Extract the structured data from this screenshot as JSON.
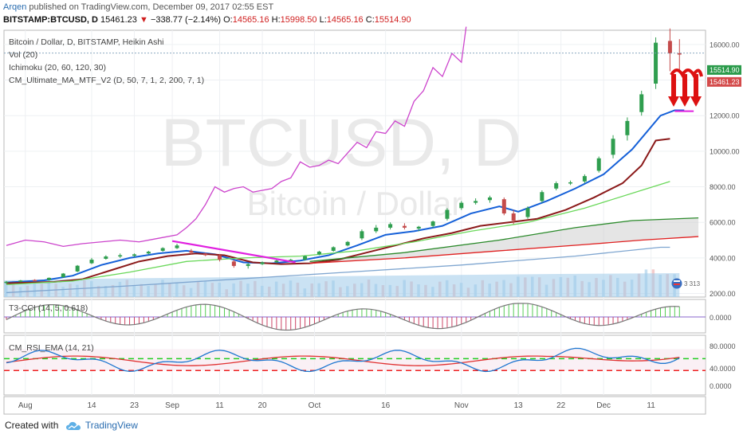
{
  "header": {
    "user": "Arqen",
    "published": "published on TradingView.com, December 09, 2017 02:55 EST",
    "symbol": "BITSTAMP:BTCUSD, D",
    "last": "15461.23",
    "change_arrow": "▼",
    "change": "−338.77 (−2.14%)",
    "o_label": "O:",
    "o": "14565.16",
    "h_label": "H:",
    "h": "15998.50",
    "l_label": "L:",
    "l": "14565.16",
    "c_label": "C:",
    "c": "15514.90"
  },
  "legend": {
    "title": "Bitcoin / Dollar, D, BITSTAMP, Heikin Ashi",
    "vol": "Vol (20)",
    "ichimoku": "Ichimoku (20, 60, 120, 30)",
    "cm_ma": "CM_Ultimate_MA_MTF_V2 (D, 50, 7, 1, 2, 200, 7, 1)"
  },
  "watermark": {
    "symbol": "BTCUSD, D",
    "name": "Bitcoin / Dollar"
  },
  "price_labels": {
    "upper": "15514.90",
    "lower": "15461.23",
    "volume": "3 313"
  },
  "indicators": {
    "cci": {
      "label": "T3-CCI (14, 5, 0.618)",
      "zero": "0.0000"
    },
    "rsi": {
      "label": "CM_RSI_EMA (14, 21)",
      "upper": "80.0000",
      "lower": "40.0000",
      "zero": "0.0000"
    }
  },
  "footer": {
    "created_with": "Created with",
    "brand": "TradingView"
  },
  "chart_data": {
    "type": "candlestick",
    "title": "Bitcoin / Dollar, D, BITSTAMP, Heikin Ashi",
    "price_axis_ticks": [
      2000,
      4000,
      6000,
      8000,
      10000,
      12000,
      14000,
      16000
    ],
    "price_axis_labels": [
      "2000.00",
      "4000.00",
      "6000.00",
      "8000.00",
      "10000.00",
      "12000.00",
      "14000.00",
      "16000.00"
    ],
    "ylim": [
      1800,
      16800
    ],
    "x_ticks": [
      "Aug",
      "14",
      "23",
      "Sep",
      "11",
      "20",
      "Oct",
      "16",
      "Nov",
      "13",
      "22",
      "Dec",
      "11"
    ],
    "x_tick_days": [
      0,
      14,
      23,
      31,
      41,
      50,
      61,
      76,
      92,
      104,
      113,
      122,
      132
    ],
    "date_range": [
      "2017-07-26",
      "2017-12-13"
    ],
    "candles_ohlc_by_day": [
      [
        -4,
        2620,
        2700,
        2540,
        2660
      ],
      [
        -1,
        2700,
        2760,
        2640,
        2730
      ],
      [
        2,
        2760,
        2800,
        2700,
        2740
      ],
      [
        5,
        2760,
        2900,
        2720,
        2880
      ],
      [
        8,
        2920,
        3150,
        2880,
        3120
      ],
      [
        11,
        3240,
        3600,
        3200,
        3560
      ],
      [
        14,
        3700,
        4000,
        3650,
        3900
      ],
      [
        17,
        3950,
        4150,
        3900,
        4080
      ],
      [
        20,
        4080,
        4250,
        4000,
        4150
      ],
      [
        23,
        4120,
        4250,
        4050,
        4200
      ],
      [
        26,
        4250,
        4400,
        4200,
        4350
      ],
      [
        29,
        4400,
        4600,
        4350,
        4550
      ],
      [
        32,
        4550,
        4800,
        4500,
        4700
      ],
      [
        35,
        4400,
        4500,
        4200,
        4300
      ],
      [
        38,
        4250,
        4300,
        4100,
        4150
      ],
      [
        41,
        4150,
        4200,
        3800,
        3900
      ],
      [
        44,
        3800,
        3900,
        3450,
        3550
      ],
      [
        47,
        3550,
        3700,
        3400,
        3650
      ],
      [
        50,
        3650,
        3800,
        3600,
        3750
      ],
      [
        53,
        3760,
        3900,
        3700,
        3850
      ],
      [
        56,
        3850,
        3950,
        3800,
        3900
      ],
      [
        59,
        3900,
        4150,
        3850,
        4100
      ],
      [
        62,
        4200,
        4400,
        4150,
        4350
      ],
      [
        65,
        4400,
        4650,
        4350,
        4600
      ],
      [
        68,
        4700,
        4950,
        4650,
        4900
      ],
      [
        71,
        5100,
        5600,
        5000,
        5500
      ],
      [
        74,
        5500,
        5850,
        5400,
        5700
      ],
      [
        77,
        5700,
        6000,
        5600,
        5900
      ],
      [
        80,
        5800,
        5950,
        5600,
        5700
      ],
      [
        83,
        5650,
        5800,
        5500,
        5750
      ],
      [
        86,
        5800,
        6100,
        5700,
        6050
      ],
      [
        89,
        6200,
        6800,
        6100,
        6700
      ],
      [
        92,
        6800,
        7200,
        6700,
        7100
      ],
      [
        95,
        7100,
        7350,
        7000,
        7200
      ],
      [
        98,
        7250,
        7500,
        7100,
        7400
      ],
      [
        101,
        7300,
        7400,
        6400,
        6500
      ],
      [
        103,
        6500,
        6700,
        5900,
        6100
      ],
      [
        106,
        6300,
        6900,
        6200,
        6800
      ],
      [
        109,
        7200,
        7800,
        7100,
        7700
      ],
      [
        112,
        7900,
        8300,
        7800,
        8200
      ],
      [
        115,
        8200,
        8350,
        8100,
        8250
      ],
      [
        118,
        8300,
        8700,
        8200,
        8600
      ],
      [
        121,
        8900,
        9700,
        8800,
        9600
      ],
      [
        124,
        9800,
        10900,
        9600,
        10700
      ],
      [
        127,
        10900,
        11900,
        10600,
        11700
      ],
      [
        130,
        12200,
        13400,
        12000,
        13200
      ],
      [
        133,
        13800,
        16400,
        13500,
        16100
      ],
      [
        136,
        16200,
        16900,
        14500,
        15500
      ],
      [
        138,
        15500,
        16300,
        14500,
        15461
      ]
    ],
    "series": [
      {
        "name": "",
        "color": "#cc44cc",
        "points_day_price": [
          [
            -4,
            4700
          ],
          [
            -2,
            4850
          ],
          [
            0,
            5000
          ],
          [
            4,
            4900
          ],
          [
            8,
            4650
          ],
          [
            12,
            4800
          ],
          [
            16,
            4900
          ],
          [
            20,
            5000
          ],
          [
            24,
            4900
          ],
          [
            28,
            5100
          ],
          [
            32,
            5300
          ],
          [
            34,
            5700
          ],
          [
            36,
            6200
          ],
          [
            38,
            7000
          ],
          [
            40,
            8000
          ],
          [
            42,
            7700
          ],
          [
            44,
            7900
          ],
          [
            46,
            8000
          ],
          [
            48,
            7700
          ],
          [
            50,
            7800
          ],
          [
            52,
            7900
          ],
          [
            54,
            8300
          ],
          [
            56,
            8500
          ],
          [
            58,
            9400
          ],
          [
            60,
            9100
          ],
          [
            62,
            9200
          ],
          [
            64,
            9500
          ],
          [
            66,
            9300
          ],
          [
            68,
            9900
          ],
          [
            70,
            10500
          ],
          [
            72,
            10200
          ],
          [
            74,
            11100
          ],
          [
            76,
            11000
          ],
          [
            78,
            11700
          ],
          [
            80,
            11400
          ],
          [
            82,
            12800
          ],
          [
            84,
            13400
          ],
          [
            86,
            14700
          ],
          [
            88,
            14200
          ],
          [
            90,
            15500
          ],
          [
            92,
            15000
          ],
          [
            93,
            17000
          ]
        ]
      },
      {
        "name": "",
        "color": "#1560d8",
        "points_day_price": [
          [
            -4,
            2620
          ],
          [
            4,
            2740
          ],
          [
            10,
            3000
          ],
          [
            16,
            3600
          ],
          [
            22,
            4000
          ],
          [
            28,
            4250
          ],
          [
            34,
            4400
          ],
          [
            40,
            4200
          ],
          [
            46,
            3750
          ],
          [
            52,
            3700
          ],
          [
            58,
            3850
          ],
          [
            64,
            4150
          ],
          [
            70,
            4700
          ],
          [
            76,
            5300
          ],
          [
            82,
            5500
          ],
          [
            88,
            5800
          ],
          [
            94,
            6500
          ],
          [
            100,
            6900
          ],
          [
            104,
            6600
          ],
          [
            110,
            7200
          ],
          [
            116,
            7900
          ],
          [
            122,
            8700
          ],
          [
            128,
            10100
          ],
          [
            134,
            12000
          ],
          [
            137,
            12300
          ],
          [
            139,
            12300
          ]
        ]
      },
      {
        "name": "",
        "color": "#8b1a1a",
        "points_day_price": [
          [
            -4,
            2580
          ],
          [
            6,
            2650
          ],
          [
            12,
            2800
          ],
          [
            18,
            3300
          ],
          [
            24,
            3800
          ],
          [
            30,
            4100
          ],
          [
            36,
            4250
          ],
          [
            42,
            4150
          ],
          [
            48,
            3750
          ],
          [
            54,
            3650
          ],
          [
            60,
            3700
          ],
          [
            66,
            3900
          ],
          [
            72,
            4300
          ],
          [
            78,
            4700
          ],
          [
            84,
            5100
          ],
          [
            90,
            5400
          ],
          [
            96,
            5800
          ],
          [
            102,
            6000
          ],
          [
            108,
            6200
          ],
          [
            114,
            6700
          ],
          [
            120,
            7400
          ],
          [
            126,
            8200
          ],
          [
            130,
            9200
          ],
          [
            133,
            10600
          ],
          [
            136,
            10700
          ]
        ]
      },
      {
        "name": "",
        "color": "#6ad85a",
        "points_day_price": [
          [
            -4,
            2500
          ],
          [
            10,
            2700
          ],
          [
            22,
            3200
          ],
          [
            34,
            3800
          ],
          [
            46,
            4000
          ],
          [
            58,
            4100
          ],
          [
            70,
            4400
          ],
          [
            82,
            4900
          ],
          [
            94,
            5500
          ],
          [
            106,
            6000
          ],
          [
            118,
            6800
          ],
          [
            130,
            7800
          ],
          [
            136,
            8300
          ]
        ]
      },
      {
        "name": "",
        "color": "#7fa6d0",
        "points_day_price": [
          [
            -4,
            2050
          ],
          [
            20,
            2400
          ],
          [
            44,
            2800
          ],
          [
            68,
            3200
          ],
          [
            92,
            3600
          ],
          [
            116,
            4100
          ],
          [
            134,
            4600
          ],
          [
            136,
            4600
          ]
        ]
      },
      {
        "name": "",
        "color": "#e02020",
        "points_day_price": [
          [
            60,
            3700
          ],
          [
            80,
            4000
          ],
          [
            100,
            4400
          ],
          [
            118,
            4750
          ],
          [
            130,
            5000
          ],
          [
            142,
            5200
          ]
        ]
      },
      {
        "name": "",
        "color": "#2b8a2b",
        "points_day_price": [
          [
            60,
            3800
          ],
          [
            80,
            4300
          ],
          [
            100,
            5000
          ],
          [
            116,
            5700
          ],
          [
            128,
            6100
          ],
          [
            142,
            6250
          ]
        ]
      }
    ],
    "cci_color": "#33aa33",
    "rsi_color": "#1f77d0",
    "rsi_ema_color": "#e03030",
    "level_colors": {
      "upper": "#22cc22",
      "lower": "#ee2222"
    },
    "gridlines": true
  }
}
